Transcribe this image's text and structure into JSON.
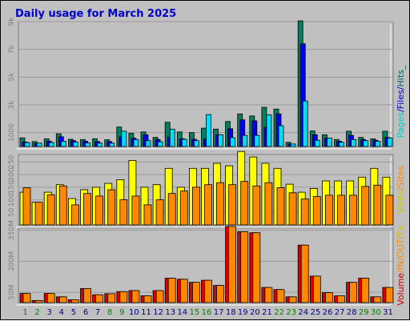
{
  "chart_data": {
    "type": "bar",
    "title": "Daily usage for March 2025",
    "days": [
      "1",
      "2",
      "3",
      "4",
      "5",
      "6",
      "7",
      "8",
      "9",
      "10",
      "11",
      "12",
      "13",
      "14",
      "15",
      "16",
      "17",
      "18",
      "19",
      "20",
      "21",
      "22",
      "23",
      "24",
      "25",
      "26",
      "27",
      "28",
      "29",
      "30",
      "31"
    ],
    "weekend_days": [
      "1",
      "2",
      "8",
      "9",
      "15",
      "16",
      "22",
      "23",
      "29",
      "30"
    ],
    "panels": [
      {
        "name": "hits",
        "ylim": [
          0,
          9000
        ],
        "ticks": [
          {
            "label": "1000",
            "value": 1000
          },
          {
            "label": "3k",
            "value": 3000
          },
          {
            "label": "5k",
            "value": 5000
          },
          {
            "label": "7k",
            "value": 7000
          },
          {
            "label": "9k",
            "value": 9000
          }
        ],
        "legend": [
          {
            "text": "Pages",
            "color": "#00cccc"
          },
          {
            "text": "/",
            "color": "#0000cc"
          },
          {
            "text": "Files",
            "color": "#0000cc"
          },
          {
            "text": "/",
            "color": "#0000cc"
          },
          {
            "text": "Hits",
            "color": "#006666"
          },
          {
            "text": "_",
            "color": "#006666"
          }
        ],
        "series": [
          {
            "name": "Hits",
            "color": "#008060",
            "values": [
              620,
              350,
              550,
              920,
              520,
              500,
              560,
              480,
              1400,
              950,
              1050,
              650,
              1750,
              1050,
              1000,
              1320,
              1250,
              1800,
              2350,
              2200,
              2820,
              2700,
              300,
              9050,
              1120,
              850,
              500,
              1100,
              650,
              550,
              1100
            ]
          },
          {
            "name": "Files",
            "color": "#0000ee",
            "values": [
              330,
              220,
              380,
              700,
              420,
              380,
              360,
              350,
              700,
              600,
              850,
              500,
              680,
              560,
              520,
              550,
              850,
              1280,
              1920,
              1850,
              1380,
              2350,
              180,
              7400,
              850,
              600,
              380,
              800,
              500,
              450,
              650
            ]
          },
          {
            "name": "Pages",
            "color": "#00ddff",
            "values": [
              280,
              240,
              280,
              380,
              320,
              260,
              240,
              240,
              1100,
              500,
              420,
              340,
              1250,
              520,
              420,
              2300,
              850,
              640,
              800,
              800,
              2280,
              1500,
              180,
              3280,
              450,
              600,
              300,
              500,
              420,
              380,
              620
            ]
          }
        ]
      },
      {
        "name": "visits",
        "ylim": [
          0,
          280
        ],
        "ticks": [
          {
            "label": "50",
            "value": 50
          },
          {
            "label": "100",
            "value": 100
          },
          {
            "label": "150",
            "value": 150
          },
          {
            "label": "200",
            "value": 200
          },
          {
            "label": "250",
            "value": 250
          }
        ],
        "legend": [
          {
            "text": "Visits",
            "color": "#cccc00"
          },
          {
            "text": "/",
            "color": "#ff8800"
          },
          {
            "text": "Sites",
            "color": "#ff8800"
          }
        ],
        "series": [
          {
            "name": "Visits",
            "color": "#ffff00",
            "values": [
              130,
              90,
              130,
              160,
              105,
              140,
              150,
              165,
              180,
              256,
              150,
              160,
              225,
              150,
              225,
              225,
              245,
              235,
              292,
              270,
              245,
              225,
              162,
              130,
              145,
              175,
              175,
              175,
              190,
              225,
              190
            ]
          },
          {
            "name": "Sites",
            "color": "#ff8800",
            "values": [
              148,
              90,
              120,
              155,
              80,
              125,
              115,
              140,
              100,
              115,
              80,
              100,
              125,
              135,
              150,
              160,
              168,
              160,
              173,
              155,
              168,
              148,
              128,
              103,
              113,
              118,
              118,
              118,
              153,
              158,
              118
            ]
          }
        ]
      },
      {
        "name": "volume",
        "ylim": [
          0,
          360
        ],
        "ticks": [
          {
            "label": "50M",
            "value": 50
          },
          {
            "label": "200M",
            "value": 200
          },
          {
            "label": "350M",
            "value": 350
          }
        ],
        "legend": [
          {
            "text": "Volume",
            "color": "#cc0000"
          },
          {
            "text": "/",
            "color": "#ff8800"
          },
          {
            "text": "IN",
            "color": "#ff8800"
          },
          {
            "text": "/",
            "color": "#ff8800"
          },
          {
            "text": "OUT",
            "color": "#ff8800"
          },
          {
            "text": "/",
            "color": "#ff8800"
          },
          {
            "text": "Ex",
            "color": "#cccc00"
          }
        ],
        "series": [
          {
            "name": "Volume",
            "color": "#dd0000",
            "values": [
              44,
              10,
              44,
              28,
              14,
              68,
              38,
              43,
              53,
              58,
              33,
              58,
              118,
              113,
              98,
              108,
              83,
              368,
              343,
              338,
              73,
              63,
              28,
              278,
              128,
              48,
              33,
              98,
              118,
              28,
              73
            ]
          },
          {
            "name": "Out",
            "color": "#ff8800",
            "values": [
              44,
              10,
              44,
              28,
              14,
              68,
              38,
              43,
              53,
              58,
              33,
              58,
              118,
              113,
              98,
              108,
              83,
              368,
              343,
              338,
              73,
              63,
              28,
              278,
              128,
              48,
              33,
              98,
              118,
              28,
              73
            ]
          }
        ]
      }
    ]
  }
}
